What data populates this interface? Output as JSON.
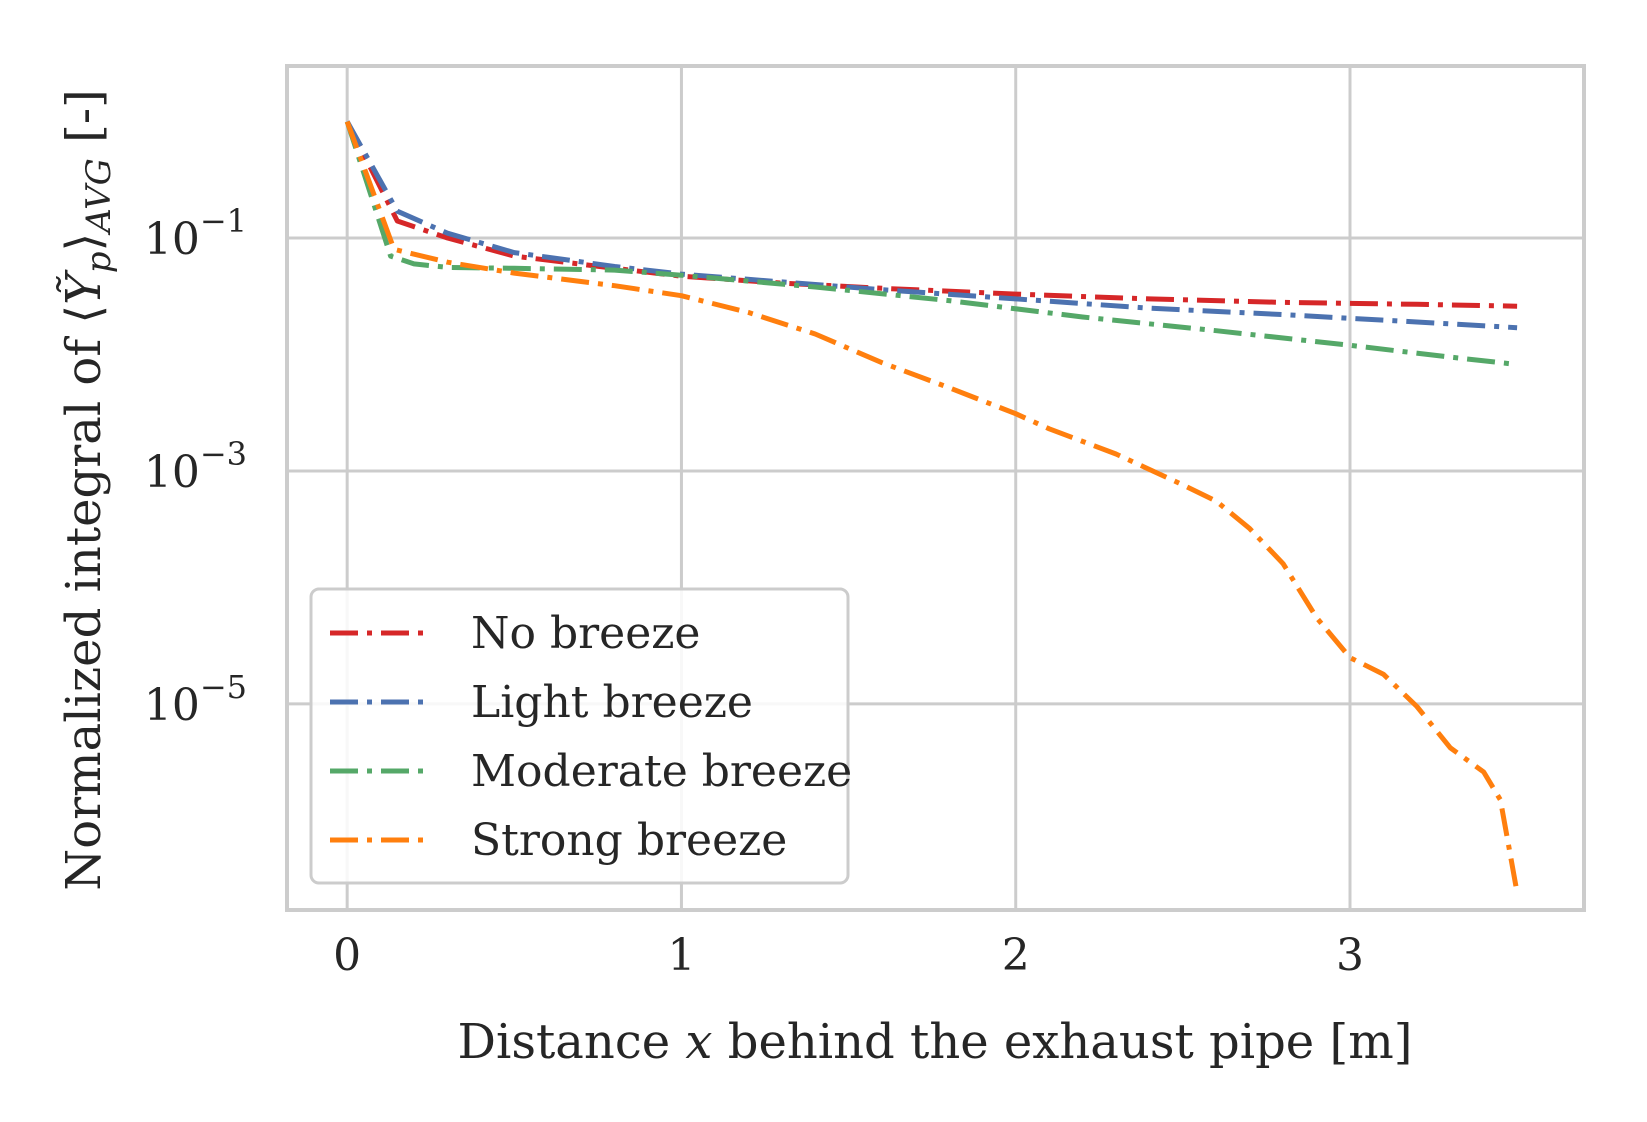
{
  "chart_data": {
    "type": "line",
    "title": "",
    "xlabel": "Distance x behind the exhaust pipe [m]",
    "xlabel_parts": {
      "pre": "Distance ",
      "var": "x",
      "post": " behind the exhaust pipe [m]"
    },
    "ylabel": "Normalized integral of ⟨Ỹp⟩AVG [-]",
    "ylabel_parts": {
      "pre": "Normalized integral of ⟨",
      "var": "Ỹ",
      "sub1": "p",
      "mid": "⟩",
      "sub2": "AVG",
      "post": " [-]"
    },
    "xscale": "linear",
    "yscale": "log",
    "xlim": [
      -0.18,
      3.7
    ],
    "ylim": [
      1.7e-07,
      3.0
    ],
    "xticks": [
      0,
      1,
      2,
      3
    ],
    "xtick_labels": [
      "0",
      "1",
      "2",
      "3"
    ],
    "yticks": [
      0.1,
      0.001,
      1e-05
    ],
    "ytick_labels": [
      {
        "base": "10",
        "exp": "−1"
      },
      {
        "base": "10",
        "exp": "−3"
      },
      {
        "base": "10",
        "exp": "−5"
      }
    ],
    "grid": true,
    "legend_position": "lower-left",
    "series": [
      {
        "name": "No breeze",
        "color": "#d62728",
        "x": [
          0,
          0.15,
          0.3,
          0.5,
          0.8,
          1.0,
          1.3,
          1.6,
          2.0,
          2.4,
          2.8,
          3.2,
          3.5
        ],
        "values": [
          1.0,
          0.14,
          0.1,
          0.07,
          0.055,
          0.047,
          0.041,
          0.037,
          0.033,
          0.03,
          0.028,
          0.027,
          0.026
        ]
      },
      {
        "name": "Light breeze",
        "color": "#4c72b0",
        "x": [
          0,
          0.15,
          0.3,
          0.5,
          0.8,
          1.0,
          1.3,
          1.6,
          2.0,
          2.4,
          2.8,
          3.2,
          3.5
        ],
        "values": [
          1.0,
          0.17,
          0.11,
          0.075,
          0.057,
          0.049,
          0.042,
          0.036,
          0.03,
          0.025,
          0.022,
          0.019,
          0.017
        ]
      },
      {
        "name": "Moderate breeze",
        "color": "#55a868",
        "x": [
          0,
          0.13,
          0.2,
          0.3,
          0.5,
          0.8,
          1.0,
          1.4,
          1.8,
          2.2,
          2.6,
          3.0,
          3.3,
          3.5
        ],
        "values": [
          1.0,
          0.07,
          0.06,
          0.056,
          0.055,
          0.053,
          0.048,
          0.038,
          0.029,
          0.021,
          0.016,
          0.012,
          0.0095,
          0.0082
        ]
      },
      {
        "name": "Strong breeze",
        "color": "#ff7f0e",
        "x": [
          0,
          0.14,
          0.3,
          0.5,
          0.8,
          1.0,
          1.2,
          1.4,
          1.6,
          1.8,
          2.0,
          2.1,
          2.3,
          2.5,
          2.6,
          2.7,
          2.8,
          2.9,
          3.0,
          3.1,
          3.2,
          3.3,
          3.4,
          3.45,
          3.5
        ],
        "values": [
          1.0,
          0.08,
          0.062,
          0.05,
          0.039,
          0.032,
          0.023,
          0.015,
          0.0085,
          0.0052,
          0.0031,
          0.0023,
          0.0014,
          0.00076,
          0.00055,
          0.00032,
          0.00016,
          5.5e-05,
          2.5e-05,
          1.8e-05,
          9.5e-06,
          4.2e-06,
          2.6e-06,
          1.5e-06,
          2.4e-07
        ]
      }
    ]
  }
}
